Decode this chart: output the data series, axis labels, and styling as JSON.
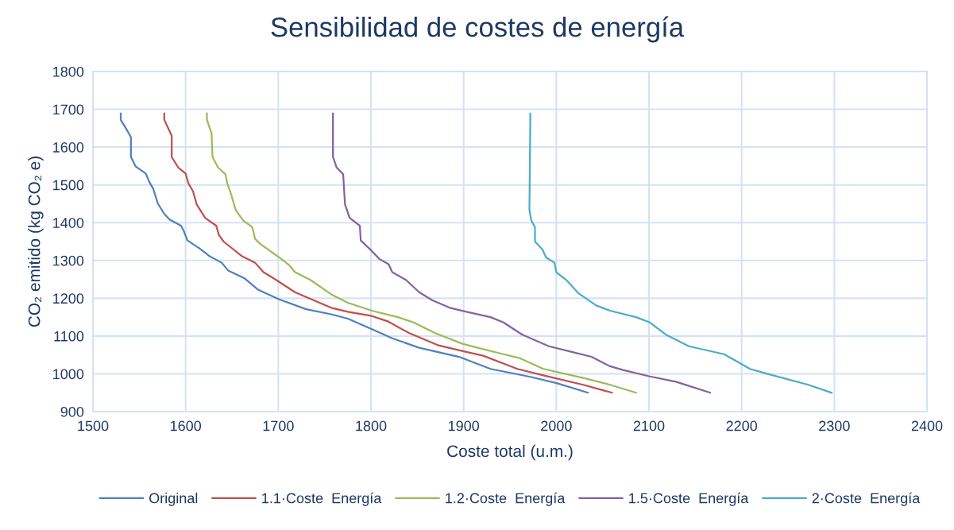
{
  "chart_data": {
    "type": "line",
    "title": "Sensibilidad de costes de energía",
    "xlabel": "Coste total (u.m.)",
    "ylabel": "CO₂ emitido (kg CO₂ e)",
    "xlim": [
      1500,
      2400
    ],
    "xticks": [
      1500,
      1600,
      1700,
      1800,
      1900,
      2000,
      2100,
      2200,
      2300,
      2400
    ],
    "ylim": [
      900,
      1800
    ],
    "yticks": [
      900,
      1000,
      1100,
      1200,
      1300,
      1400,
      1500,
      1600,
      1700,
      1800
    ],
    "grid": true,
    "legend": "bottom",
    "marker": "none",
    "line_style": "solid",
    "series": [
      {
        "name": "Original",
        "color": "#4f81bd",
        "x": [
          1530,
          1530,
          1537,
          1541,
          1541,
          1546,
          1557,
          1561,
          1565,
          1570,
          1577,
          1583,
          1595,
          1598,
          1602,
          1615,
          1626,
          1639,
          1646,
          1664,
          1678,
          1701,
          1730,
          1758,
          1775,
          1801,
          1823,
          1852,
          1895,
          1929,
          1972,
          2001,
          2034
        ],
        "values": [
          1689,
          1672,
          1644,
          1626,
          1574,
          1549,
          1530,
          1507,
          1490,
          1451,
          1423,
          1408,
          1392,
          1378,
          1353,
          1332,
          1311,
          1294,
          1273,
          1252,
          1223,
          1197,
          1171,
          1157,
          1146,
          1118,
          1094,
          1069,
          1045,
          1013,
          992,
          975,
          950
        ]
      },
      {
        "name": "1.1·Coste  Energía",
        "color": "#c0504d",
        "x": [
          1577,
          1577,
          1585,
          1585,
          1592,
          1600,
          1603,
          1608,
          1612,
          1621,
          1633,
          1636,
          1641,
          1661,
          1675,
          1684,
          1698,
          1718,
          1738,
          1758,
          1775,
          1801,
          1818,
          1841,
          1872,
          1901,
          1921,
          1958,
          1986,
          2029,
          2060
        ],
        "values": [
          1689,
          1672,
          1630,
          1574,
          1546,
          1530,
          1504,
          1483,
          1448,
          1413,
          1392,
          1367,
          1350,
          1311,
          1294,
          1269,
          1248,
          1216,
          1195,
          1174,
          1164,
          1153,
          1139,
          1108,
          1076,
          1059,
          1048,
          1013,
          996,
          971,
          950
        ]
      },
      {
        "name": "1.2·Coste  Energía",
        "color": "#9bbb59",
        "x": [
          1623,
          1623,
          1628,
          1629,
          1635,
          1643,
          1645,
          1649,
          1654,
          1662,
          1672,
          1675,
          1681,
          1701,
          1712,
          1718,
          1735,
          1758,
          1775,
          1801,
          1829,
          1846,
          1869,
          1898,
          1915,
          1943,
          1961,
          1986,
          2029,
          2058,
          2086
        ],
        "values": [
          1689,
          1672,
          1637,
          1574,
          1546,
          1528,
          1504,
          1476,
          1434,
          1406,
          1388,
          1357,
          1343,
          1308,
          1287,
          1269,
          1248,
          1209,
          1188,
          1167,
          1150,
          1136,
          1108,
          1080,
          1069,
          1052,
          1041,
          1013,
          989,
          971,
          950
        ]
      },
      {
        "name": "1.5·Coste  Energía",
        "color": "#8064a2",
        "x": [
          1759,
          1759,
          1763,
          1770,
          1772,
          1777,
          1788,
          1789,
          1801,
          1809,
          1819,
          1823,
          1838,
          1852,
          1866,
          1886,
          1903,
          1929,
          1943,
          1963,
          1992,
          2015,
          2038,
          2058,
          2072,
          2101,
          2129,
          2166
        ],
        "values": [
          1689,
          1574,
          1546,
          1528,
          1448,
          1413,
          1392,
          1353,
          1325,
          1304,
          1290,
          1269,
          1248,
          1216,
          1195,
          1174,
          1164,
          1150,
          1136,
          1104,
          1073,
          1059,
          1045,
          1020,
          1010,
          993,
          979,
          950
        ]
      },
      {
        "name": "2·Coste  Energía",
        "color": "#4bacc6",
        "x": [
          1972,
          1971,
          1973,
          1977,
          1977,
          1985,
          1989,
          1998,
          2000,
          2011,
          2024,
          2043,
          2058,
          2086,
          2101,
          2118,
          2143,
          2181,
          2209,
          2229,
          2272,
          2297
        ],
        "values": [
          1689,
          1434,
          1406,
          1388,
          1350,
          1329,
          1308,
          1294,
          1269,
          1248,
          1213,
          1181,
          1167,
          1150,
          1136,
          1104,
          1073,
          1052,
          1013,
          999,
          971,
          950
        ]
      }
    ]
  }
}
